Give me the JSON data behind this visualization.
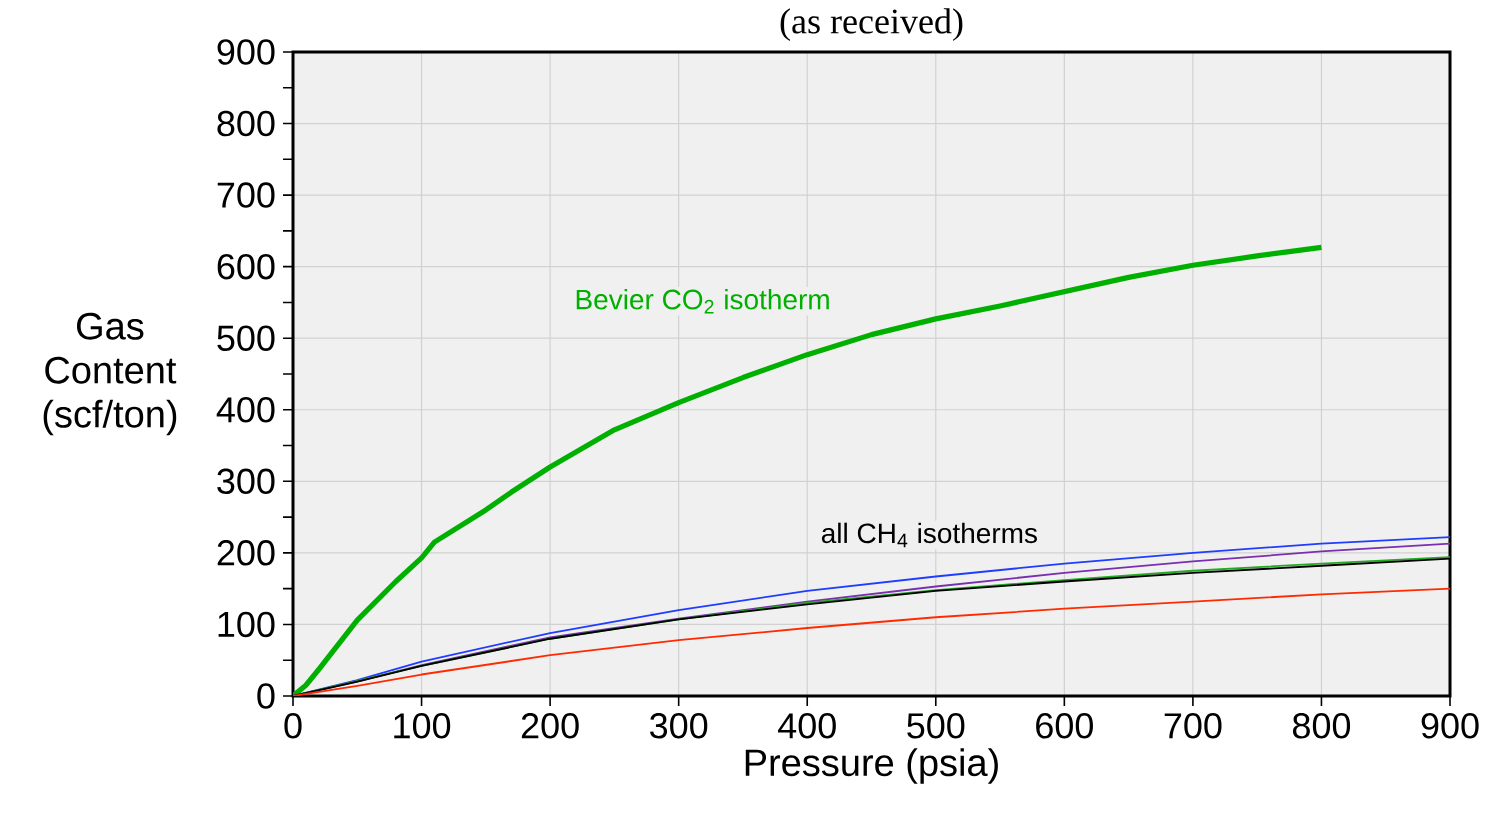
{
  "chart_data": {
    "type": "line",
    "title": "(as received)",
    "xlabel": "Pressure (psia)",
    "ylabel": "Gas Content (scf/ton)",
    "xlim": [
      0,
      900
    ],
    "ylim": [
      0,
      900
    ],
    "xticks": [
      0,
      100,
      200,
      300,
      400,
      500,
      600,
      700,
      800,
      900
    ],
    "yticks": [
      0,
      100,
      200,
      300,
      400,
      500,
      600,
      700,
      800,
      900
    ],
    "grid": true,
    "marker": "none",
    "line_style": "solid",
    "series": [
      {
        "color": "#00b000",
        "x": [
          0,
          10,
          20,
          50,
          80,
          100,
          110,
          150,
          170,
          200,
          250,
          300,
          350,
          400,
          450,
          500,
          550,
          600,
          650,
          700,
          750,
          800
        ],
        "values": [
          0,
          15,
          37,
          106,
          160,
          193,
          215,
          260,
          285,
          320,
          372,
          410,
          445,
          477,
          505,
          527,
          545,
          565,
          585,
          602,
          615,
          627
        ]
      },
      {
        "color": "#1f3cff",
        "x": [
          0,
          50,
          100,
          150,
          200,
          300,
          400,
          500,
          600,
          700,
          800,
          900
        ],
        "values": [
          0,
          22,
          48,
          68,
          88,
          120,
          147,
          167,
          185,
          200,
          213,
          222
        ]
      },
      {
        "color": "#7a2fb0",
        "x": [
          0,
          50,
          100,
          200,
          300,
          400,
          500,
          600,
          700,
          800,
          900
        ],
        "values": [
          0,
          20,
          43,
          82,
          108,
          132,
          153,
          172,
          188,
          202,
          213
        ]
      },
      {
        "color": "#22aa22",
        "x": [
          0,
          100,
          200,
          300,
          400,
          500,
          600,
          700,
          800,
          900
        ],
        "values": [
          0,
          42,
          80,
          107,
          130,
          148,
          162,
          175,
          185,
          194
        ]
      },
      {
        "color": "#000000",
        "x": [
          0,
          50,
          100,
          200,
          300,
          400,
          500,
          600,
          700,
          800,
          900
        ],
        "values": [
          0,
          20,
          42,
          80,
          107,
          128,
          147,
          160,
          172,
          182,
          192
        ]
      },
      {
        "color": "#ff2a00",
        "x": [
          0,
          50,
          100,
          200,
          300,
          400,
          500,
          600,
          700,
          800,
          900
        ],
        "values": [
          0,
          14,
          30,
          57,
          78,
          95,
          110,
          122,
          132,
          142,
          150
        ]
      }
    ],
    "annotations": [
      "Bevier CO$_{2}$ isotherm",
      "all CH$_{4}$ isotherms"
    ]
  }
}
